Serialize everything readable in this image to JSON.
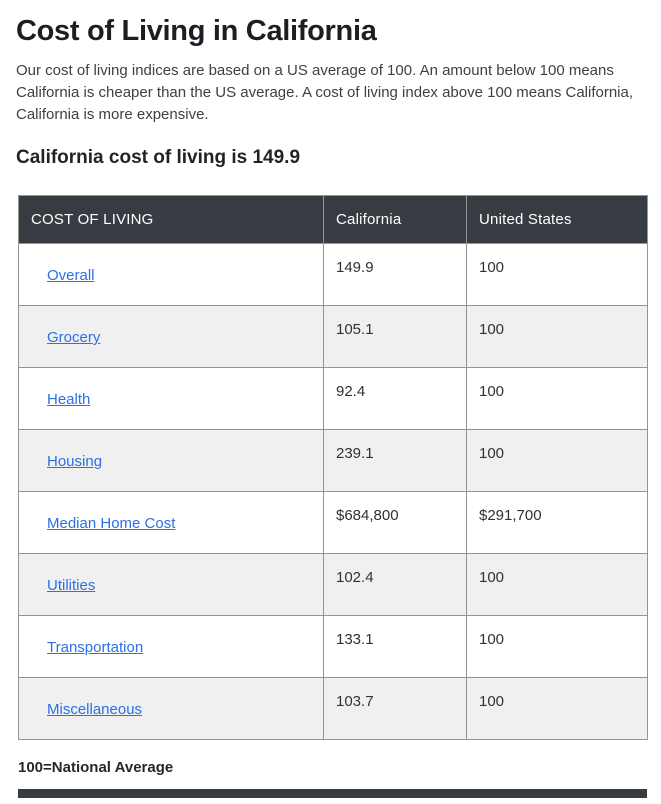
{
  "page": {
    "title": "Cost of Living in California",
    "intro": "Our cost of living indices are based on a US average of 100. An amount below 100 means California is cheaper than the US average. A cost of living index above 100 means California, California is more expensive.",
    "subtitle": "California cost of living is 149.9",
    "footnote": "100=National Average"
  },
  "table": {
    "columns": [
      "COST OF LIVING",
      "California",
      "United States"
    ],
    "rows": [
      {
        "label": "Overall",
        "california": "149.9",
        "united_states": "100"
      },
      {
        "label": "Grocery",
        "california": "105.1",
        "united_states": "100"
      },
      {
        "label": "Health",
        "california": "92.4",
        "united_states": "100"
      },
      {
        "label": "Housing",
        "california": "239.1",
        "united_states": "100"
      },
      {
        "label": "Median Home Cost",
        "california": "$684,800",
        "united_states": "$291,700"
      },
      {
        "label": "Utilities",
        "california": "102.4",
        "united_states": "100"
      },
      {
        "label": "Transportation",
        "california": "133.1",
        "united_states": "100"
      },
      {
        "label": "Miscellaneous",
        "california": "103.7",
        "united_states": "100"
      }
    ]
  },
  "colors": {
    "header_bg": "#373c43",
    "header_text": "#ffffff",
    "alt_row_bg": "#f0f0f0",
    "border": "#949494",
    "link": "#2a70e6"
  }
}
